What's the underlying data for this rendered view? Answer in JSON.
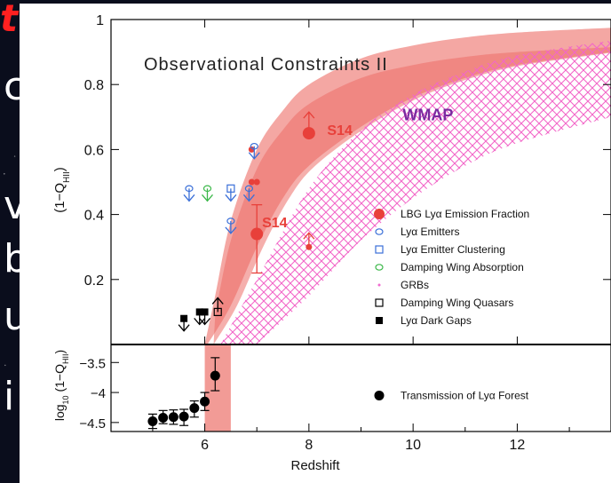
{
  "slide": {
    "title_fragment": "t",
    "left_text_fragments": [
      "c",
      "v",
      "b",
      "u",
      "i"
    ]
  },
  "colors": {
    "slide_background": "#0a0d1c",
    "panel_background": "#ffffff",
    "lbg_band": "#f08a84",
    "lbg_band_core": "#ec6e68",
    "wmap_hatch": "#f266c8",
    "wmap_label": "#7a2aa0",
    "s14": "#e8403a",
    "emitters": "#3a6fd8",
    "clustering": "#3a6fd8",
    "damping_wing": "#3cb84a",
    "dark_markers": "#000000"
  },
  "chart_data": [
    {
      "type": "scatter",
      "title": "Observational Constraints II",
      "xlabel": "Redshift",
      "ylabel": "(1−Q_HII)",
      "ylabel_main": "(1−Q",
      "ylabel_sub": "HII",
      "ylabel_close": ")",
      "xlim": [
        4.2,
        13.8
      ],
      "ylim": [
        0,
        1
      ],
      "x_ticks": [
        "6",
        "8",
        "10",
        "12"
      ],
      "x_tick_values": [
        6,
        8,
        10,
        12
      ],
      "y_ticks": [
        "0.2",
        "0.4",
        "0.6",
        "0.8",
        "1"
      ],
      "y_tick_values": [
        0.2,
        0.4,
        0.6,
        0.8,
        1.0
      ],
      "annotations": [
        {
          "text": "WMAP",
          "x": 9.8,
          "y": 0.69
        },
        {
          "text": "S14",
          "x": 8.35,
          "y": 0.645
        },
        {
          "text": "S14",
          "x": 7.1,
          "y": 0.36
        }
      ],
      "bands": [
        {
          "name": "LBG constraint region",
          "upper": [
            [
              6.0,
              0.0
            ],
            [
              6.2,
              0.15
            ],
            [
              6.5,
              0.38
            ],
            [
              7.0,
              0.6
            ],
            [
              7.5,
              0.72
            ],
            [
              8.0,
              0.8
            ],
            [
              9.0,
              0.88
            ],
            [
              10.0,
              0.92
            ],
            [
              11.0,
              0.945
            ],
            [
              12.0,
              0.96
            ],
            [
              13.8,
              0.975
            ]
          ],
          "lower": [
            [
              6.05,
              0.0
            ],
            [
              6.5,
              0.12
            ],
            [
              7.0,
              0.3
            ],
            [
              7.5,
              0.45
            ],
            [
              8.0,
              0.55
            ],
            [
              9.0,
              0.67
            ],
            [
              10.0,
              0.76
            ],
            [
              11.0,
              0.82
            ],
            [
              12.0,
              0.86
            ],
            [
              13.8,
              0.9
            ]
          ]
        },
        {
          "name": "WMAP",
          "upper": [
            [
              6.3,
              0.0
            ],
            [
              7.0,
              0.2
            ],
            [
              8.0,
              0.48
            ],
            [
              9.0,
              0.66
            ],
            [
              10.0,
              0.77
            ],
            [
              11.0,
              0.84
            ],
            [
              12.0,
              0.89
            ],
            [
              13.8,
              0.935
            ]
          ],
          "lower": [
            [
              7.0,
              0.0
            ],
            [
              8.0,
              0.15
            ],
            [
              9.0,
              0.32
            ],
            [
              10.0,
              0.45
            ],
            [
              11.0,
              0.55
            ],
            [
              12.0,
              0.62
            ],
            [
              13.8,
              0.7
            ]
          ]
        }
      ],
      "legend_placement": "right",
      "series": [
        {
          "name": "LBG Lyα Emission Fraction",
          "marker": "filled-circle",
          "color": "#e8403a",
          "points": [
            {
              "x": 8.0,
              "y": 0.65,
              "limit": "lower",
              "size": "big"
            },
            {
              "x": 7.0,
              "y": 0.34,
              "yerr": [
                0.12,
                0.09
              ],
              "size": "big"
            },
            {
              "x": 6.9,
              "y": 0.6,
              "size": "small"
            },
            {
              "x": 6.9,
              "y": 0.5,
              "size": "small"
            },
            {
              "x": 7.0,
              "y": 0.5,
              "size": "small"
            },
            {
              "x": 8.0,
              "y": 0.3,
              "limit": "lower",
              "size": "small"
            }
          ]
        },
        {
          "name": "Lyα Emitters",
          "marker": "open-circle",
          "color": "#3a6fd8",
          "points": [
            {
              "x": 5.7,
              "y": 0.48,
              "limit": "upper"
            },
            {
              "x": 6.5,
              "y": 0.38,
              "limit": "upper"
            },
            {
              "x": 6.85,
              "y": 0.48,
              "limit": "upper"
            },
            {
              "x": 6.95,
              "y": 0.61,
              "limit": "upper"
            }
          ]
        },
        {
          "name": "Lyα Emitter Clustering",
          "marker": "open-square",
          "color": "#3a6fd8",
          "points": [
            {
              "x": 6.5,
              "y": 0.48,
              "limit": "upper"
            }
          ]
        },
        {
          "name": "Damping Wing Absorption",
          "marker": "open-circle",
          "color": "#3cb84a",
          "points": [
            {
              "x": 6.05,
              "y": 0.48,
              "limit": "upper"
            }
          ]
        },
        {
          "name": "GRBs",
          "marker": "dot",
          "color": "#f06ad0",
          "points": []
        },
        {
          "name": "Damping Wing Quasars",
          "marker": "open-square",
          "color": "#000000",
          "points": [
            {
              "x": 6.25,
              "y": 0.1,
              "limit": "lower"
            }
          ]
        },
        {
          "name": "Lyα Dark Gaps",
          "marker": "filled-square",
          "color": "#000000",
          "points": [
            {
              "x": 5.6,
              "y": 0.08,
              "limit": "upper"
            },
            {
              "x": 5.9,
              "y": 0.1,
              "limit": "upper"
            },
            {
              "x": 6.0,
              "y": 0.1,
              "limit": "upper"
            }
          ]
        }
      ]
    },
    {
      "type": "scatter",
      "xlabel": "Redshift",
      "ylabel_main": "log",
      "ylabel_sub10": "10",
      "ylabel_rest": " (1−Q",
      "ylabel_sub": "HII",
      "ylabel_close": ")",
      "xlim": [
        4.2,
        13.8
      ],
      "ylim": [
        -4.65,
        -3.2
      ],
      "x_ticks": [
        "6",
        "8",
        "10",
        "12"
      ],
      "x_tick_values": [
        6,
        8,
        10,
        12
      ],
      "y_ticks": [
        "−3.5",
        "−4",
        "−4.5"
      ],
      "y_tick_values": [
        -3.5,
        -4.0,
        -4.5
      ],
      "band": {
        "name": "reionization end",
        "x": [
          6.0,
          6.5
        ]
      },
      "legend_placement": "right",
      "series": [
        {
          "name": "Transmission of Lyα Forest",
          "marker": "filled-circle",
          "color": "#000000",
          "points": [
            {
              "x": 5.0,
              "y": -4.48,
              "yerr": [
                0.12,
                0.12
              ]
            },
            {
              "x": 5.2,
              "y": -4.42,
              "yerr": [
                0.1,
                0.12
              ]
            },
            {
              "x": 5.4,
              "y": -4.41,
              "yerr": [
                0.12,
                0.12
              ]
            },
            {
              "x": 5.6,
              "y": -4.4,
              "yerr": [
                0.15,
                0.12
              ]
            },
            {
              "x": 5.8,
              "y": -4.26,
              "yerr": [
                0.15,
                0.12
              ]
            },
            {
              "x": 6.0,
              "y": -4.15,
              "yerr": [
                0.15,
                0.15
              ]
            },
            {
              "x": 6.2,
              "y": -3.72,
              "yerr": [
                0.25,
                0.3
              ]
            }
          ]
        }
      ]
    }
  ]
}
